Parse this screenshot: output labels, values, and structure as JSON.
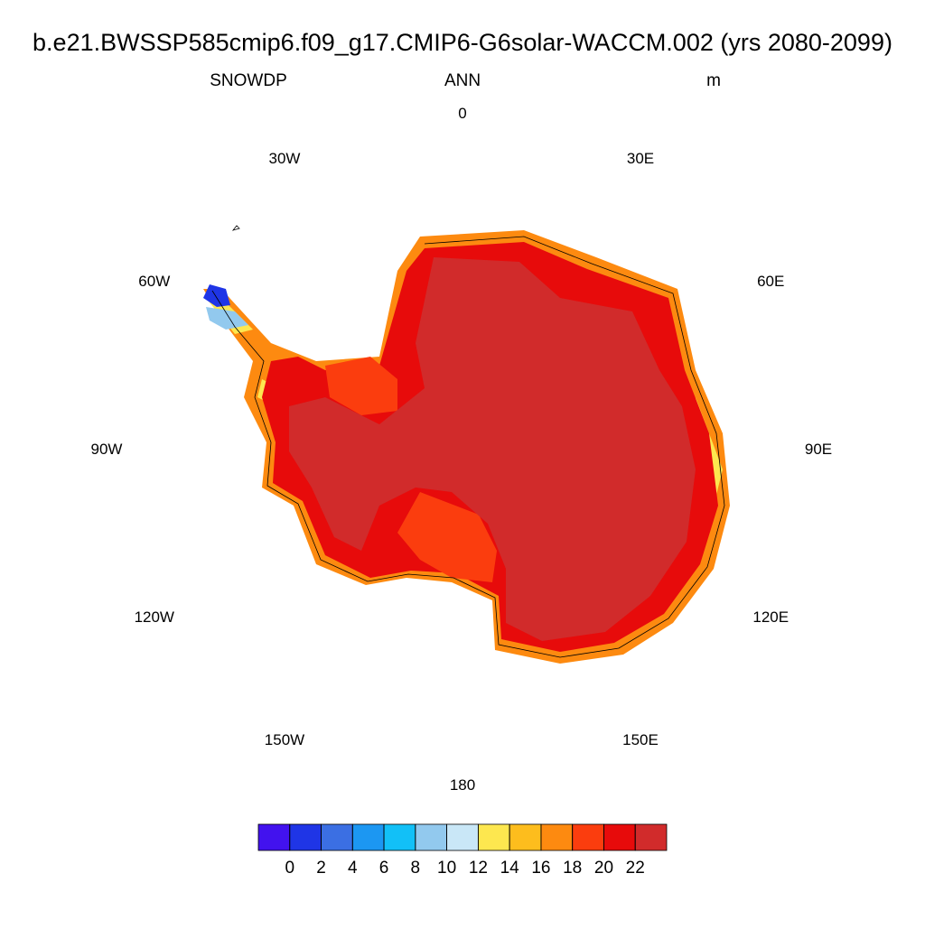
{
  "header": {
    "title": "b.e21.BWSSP585cmip6.f09_g17.CMIP6-G6solar-WACCM.002 (yrs 2080-2099)",
    "variable": "SNOWDP",
    "season": "ANN",
    "units": "m"
  },
  "longitude_labels": [
    "0",
    "30E",
    "60E",
    "90E",
    "120E",
    "150E",
    "180",
    "150W",
    "120W",
    "90W",
    "60W",
    "30W"
  ],
  "colorbar": {
    "colors": [
      "#4212ee",
      "#1f35e6",
      "#3b6fe3",
      "#1c97f2",
      "#12c0f7",
      "#92c9ee",
      "#c9e7f7",
      "#fde74f",
      "#fdbd1d",
      "#fd8a10",
      "#fb3d0e",
      "#e70b0b",
      "#d12b2b"
    ],
    "ticks": [
      0,
      2,
      4,
      6,
      8,
      10,
      12,
      14,
      16,
      18,
      20,
      22
    ]
  }
}
